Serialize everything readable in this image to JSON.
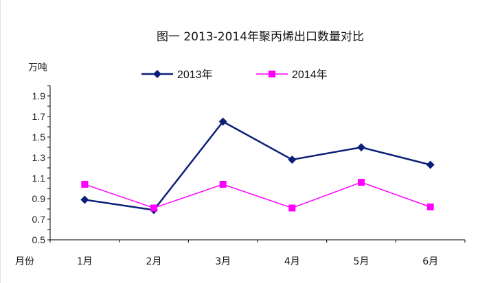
{
  "chart_data": {
    "type": "line",
    "title": "图一 2013-2014年聚丙烯出口数量对比",
    "ylabel": "万吨",
    "xlabel": "月份",
    "categories": [
      "1月",
      "2月",
      "3月",
      "4月",
      "5月",
      "6月"
    ],
    "ylim": [
      0.5,
      2.0
    ],
    "yticks": [
      "0.5",
      "0.7",
      "0.9",
      "1.1",
      "1.3",
      "1.5",
      "1.7",
      "1.9"
    ],
    "grid": false,
    "legend_position": "top",
    "series": [
      {
        "name": "2013年",
        "values": [
          0.89,
          0.79,
          1.65,
          1.28,
          1.4,
          1.23
        ],
        "color": "#0b1f78",
        "marker": "diamond"
      },
      {
        "name": "2014年",
        "values": [
          1.04,
          0.81,
          1.04,
          0.81,
          1.06,
          0.82
        ],
        "color": "#ff00ff",
        "marker": "square"
      }
    ]
  }
}
